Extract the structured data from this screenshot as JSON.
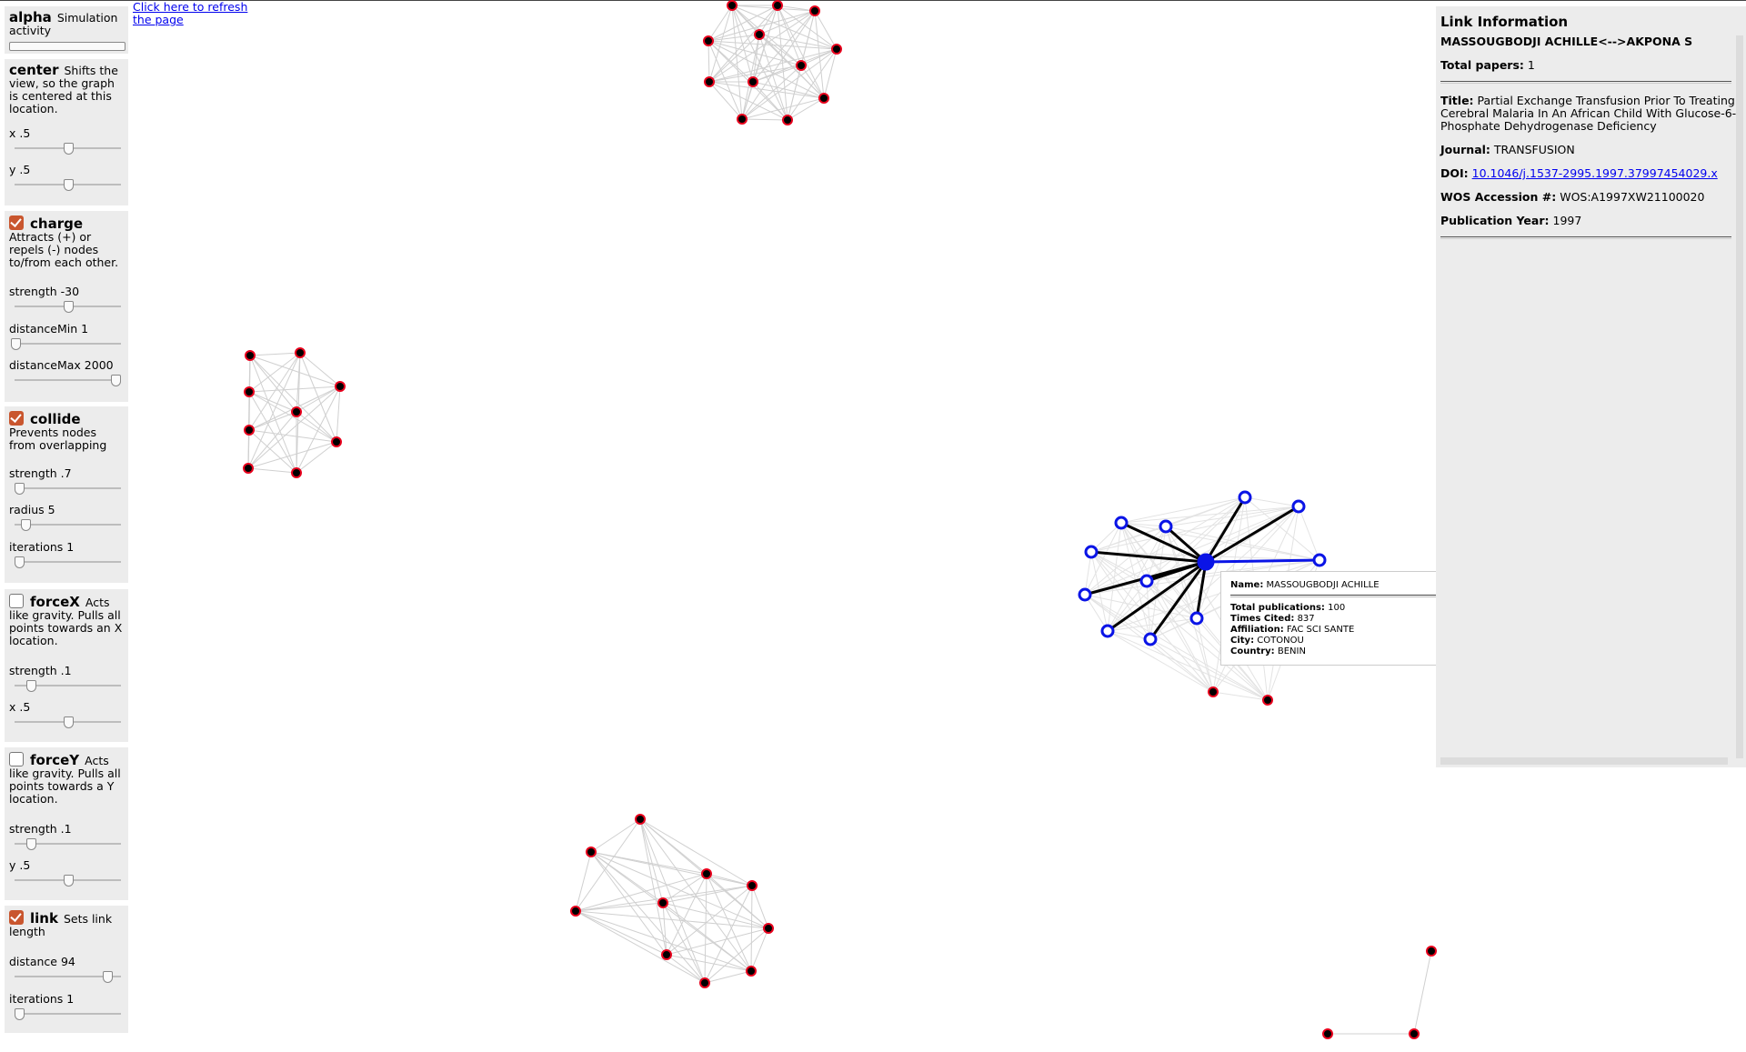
{
  "refresh_link": "Click here to refresh the page",
  "controls": {
    "alpha": {
      "title": "alpha",
      "desc": "Simulation activity",
      "value": 0
    },
    "center": {
      "title": "center",
      "desc": "Shifts the view, so the graph is centered at this location.",
      "x": {
        "label": "x .5",
        "value": 0.5
      },
      "y": {
        "label": "y .5",
        "value": 0.5
      }
    },
    "charge": {
      "title": "charge",
      "enabled": true,
      "desc": "Attracts (+) or repels (-) nodes to/from each other.",
      "strength": {
        "label": "strength -30",
        "value": 0.5
      },
      "distanceMin": {
        "label": "distanceMin 1",
        "value": 0.01
      },
      "distanceMax": {
        "label": "distanceMax 2000",
        "value": 0.95
      }
    },
    "collide": {
      "title": "collide",
      "enabled": true,
      "desc": "Prevents nodes from overlapping",
      "strength": {
        "label": "strength .7",
        "value": 0.04
      },
      "radius": {
        "label": "radius 5",
        "value": 0.1
      },
      "iterations": {
        "label": "iterations 1",
        "value": 0.04
      }
    },
    "forceX": {
      "title": "forceX",
      "enabled": false,
      "desc": "Acts like gravity. Pulls all points towards an X location.",
      "strength": {
        "label": "strength .1",
        "value": 0.15
      },
      "x": {
        "label": "x .5",
        "value": 0.5
      }
    },
    "forceY": {
      "title": "forceY",
      "enabled": false,
      "desc": "Acts like gravity. Pulls all points towards a Y location.",
      "strength": {
        "label": "strength .1",
        "value": 0.15
      },
      "y": {
        "label": "y .5",
        "value": 0.5
      }
    },
    "link": {
      "title": "link",
      "enabled": true,
      "desc": "Sets link length",
      "distance": {
        "label": "distance 94",
        "value": 0.87
      },
      "iterations": {
        "label": "iterations 1",
        "value": 0.04
      }
    }
  },
  "tooltip": {
    "name_label": "Name:",
    "name": "MASSOUGBODJI ACHILLE",
    "pubs_label": "Total publications:",
    "pubs": "100",
    "cited_label": "Times Cited:",
    "cited": "837",
    "affil_label": "Affiliation:",
    "affil": "FAC SCI SANTE",
    "city_label": "City:",
    "city": "COTONOU",
    "country_label": "Country:",
    "country": "BENIN"
  },
  "link_info": {
    "heading": "Link Information",
    "pair": "MASSOUGBODJI ACHILLE<-->AKPONA S",
    "total_label": "Total papers:",
    "total": "1",
    "title_label": "Title:",
    "title": "Partial Exchange Transfusion Prior To Treating Cerebral Malaria In An African Child With Glucose-6-Phosphate Dehydrogenase Deficiency",
    "journal_label": "Journal:",
    "journal": "TRANSFUSION",
    "doi_label": "DOI:",
    "doi": "10.1046/j.1537-2995.1997.37997454029.x",
    "wos_label": "WOS Accession #:",
    "wos": "WOS:A1997XW21100020",
    "year_label": "Publication Year:",
    "year": "1997"
  },
  "colors": {
    "node_fill": "#000000",
    "node_stroke": "#e8001c",
    "highlight": "#0a14e6",
    "edge": "#d0d0d0",
    "panel_bg": "#ececec",
    "accent_check": "#c9562e"
  }
}
